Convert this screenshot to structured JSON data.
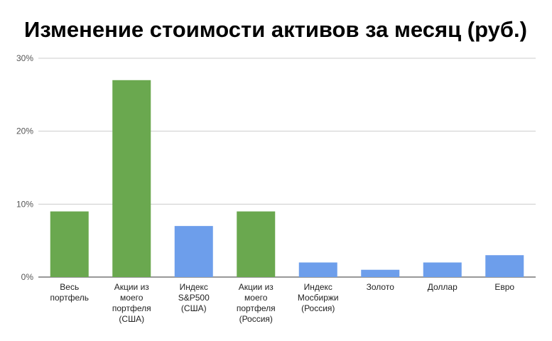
{
  "chart_data": {
    "type": "bar",
    "title": "Изменение стоимости активов за месяц (руб.)",
    "xlabel": "",
    "ylabel": "",
    "ylim": [
      0,
      30
    ],
    "yticks": [
      "0%",
      "10%",
      "20%",
      "30%"
    ],
    "categories": [
      [
        "Весь",
        "портфель"
      ],
      [
        "Акции из",
        "моего",
        "портфеля",
        "(США)"
      ],
      [
        "Индекс",
        "S&P500",
        "(США)"
      ],
      [
        "Акции из",
        "моего",
        "портфеля",
        "(Россия)"
      ],
      [
        "Индекс",
        "Мосбиржи",
        "(Россия)"
      ],
      [
        "Золото"
      ],
      [
        "Доллар"
      ],
      [
        "Евро"
      ]
    ],
    "values": [
      9,
      27,
      7,
      9,
      2,
      1,
      2,
      3
    ],
    "bar_colors": [
      "#6aa84f",
      "#6aa84f",
      "#6d9eeb",
      "#6aa84f",
      "#6d9eeb",
      "#6d9eeb",
      "#6d9eeb",
      "#6d9eeb"
    ],
    "grid": true,
    "legend": "none"
  }
}
